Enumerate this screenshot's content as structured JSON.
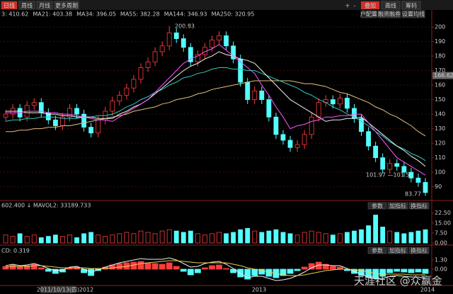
{
  "toolbar": {
    "left": [
      "日线",
      "周线",
      "月线",
      "更多周期"
    ],
    "right": [
      "+",
      "-",
      "叠加",
      "画线",
      "筹码"
    ],
    "sub": [
      "户配置",
      "融资融券",
      "设置均线"
    ]
  },
  "legend": [
    {
      "text": "3: 410.62",
      "color": "#dddddd"
    },
    {
      "text": "MA21: 403.38",
      "color": "#ff55ff"
    },
    {
      "text": "MA34: 396.05",
      "color": "#33dd33"
    },
    {
      "text": "MA55: 382.28",
      "color": "#eeeeee"
    },
    {
      "text": "MA144: 346.93",
      "color": "#2fc8c0"
    },
    {
      "text": "MA250: 320.95",
      "color": "#e0c27a"
    }
  ],
  "annotations": [
    "200.83",
    "83.77",
    "101.97 —101.54"
  ],
  "x_labels": [
    "2011/10/13(四)",
    "2012",
    "2013",
    "2014"
  ],
  "panel_buttons": [
    "参数",
    "加指标",
    "换指标"
  ],
  "watermark": "天涯社区 @众赢金",
  "chart_data": [
    {
      "type": "candlestick",
      "up_color": "#ff3c3c",
      "down_color": "#54ffff",
      "grid": true,
      "ylim": [
        82,
        203
      ],
      "yticks": [
        200,
        190,
        180,
        170,
        160,
        150,
        140,
        130,
        120,
        110,
        100,
        90
      ],
      "cursor_label": 166.62,
      "open": [
        138,
        140,
        144,
        138,
        146,
        148,
        141,
        136,
        132,
        138,
        144,
        140,
        131,
        127,
        136,
        142,
        149,
        153,
        158,
        164,
        172,
        176,
        183,
        187,
        196,
        192,
        186,
        176,
        181,
        186,
        191,
        194,
        187,
        178,
        162,
        150,
        156,
        150,
        138,
        126,
        122,
        117,
        119,
        126,
        138,
        148,
        150,
        147,
        151,
        144,
        137,
        128,
        118,
        110,
        102,
        106,
        104,
        100,
        96,
        93
      ],
      "high": [
        143,
        147,
        147,
        149,
        151,
        151,
        144,
        139,
        141,
        147,
        147,
        143,
        134,
        139,
        145,
        152,
        156,
        161,
        167,
        175,
        179,
        186,
        190,
        200.83,
        199,
        195,
        189,
        184,
        189,
        194,
        197,
        197,
        190,
        181,
        165,
        159,
        159,
        153,
        141,
        129,
        125,
        122,
        129,
        141,
        151,
        153,
        153,
        154,
        154,
        147,
        140,
        131,
        121,
        113,
        109,
        109,
        107,
        103,
        99,
        96
      ],
      "low": [
        135,
        137,
        135,
        135,
        143,
        138,
        133,
        129,
        129,
        135,
        137,
        128,
        124,
        124,
        133,
        139,
        146,
        150,
        155,
        161,
        169,
        173,
        180,
        184,
        189,
        183,
        173,
        173,
        178,
        183,
        188,
        184,
        175,
        159,
        147,
        147,
        147,
        135,
        123,
        119,
        114,
        114,
        116,
        123,
        135,
        145,
        144,
        144,
        141,
        134,
        125,
        115,
        107,
        99,
        99,
        101,
        97,
        93,
        90,
        83.77
      ],
      "close": [
        140,
        144,
        138,
        146,
        148,
        141,
        136,
        132,
        138,
        144,
        140,
        131,
        127,
        136,
        142,
        149,
        153,
        158,
        164,
        172,
        176,
        183,
        187,
        196,
        192,
        186,
        176,
        181,
        186,
        191,
        194,
        187,
        178,
        162,
        150,
        156,
        150,
        138,
        126,
        122,
        117,
        119,
        126,
        138,
        148,
        150,
        147,
        151,
        144,
        137,
        128,
        118,
        110,
        102,
        106,
        104,
        100,
        96,
        93,
        86
      ],
      "series": [
        {
          "color": "#e0c27a",
          "values": [
            128,
            128,
            129,
            129,
            130,
            130,
            131,
            131,
            132,
            132,
            133,
            134,
            135,
            136,
            137,
            138,
            139,
            140,
            142,
            143,
            144,
            145,
            147,
            148,
            150,
            151,
            152,
            154,
            155,
            157,
            158,
            159,
            160,
            161,
            162,
            163,
            163,
            163,
            163,
            163,
            163,
            162,
            161,
            161,
            160,
            159,
            157,
            155,
            154,
            152,
            150,
            148,
            145,
            143,
            140,
            138,
            135,
            132,
            128,
            125
          ]
        },
        {
          "color": "#2fc8c0",
          "values": [
            135,
            136,
            136,
            137,
            137,
            138,
            138,
            138,
            137,
            137,
            137,
            138,
            138,
            139,
            139,
            140,
            142,
            145,
            147,
            150,
            152,
            155,
            157,
            160,
            162,
            165,
            166,
            168,
            169,
            171,
            172,
            172,
            171,
            171,
            170,
            170,
            168,
            166,
            164,
            162,
            160,
            158,
            155,
            153,
            150,
            148,
            145,
            143,
            140,
            138,
            135,
            132,
            128,
            125,
            121,
            118,
            116,
            113,
            111,
            108
          ]
        },
        {
          "color": "#eeeeee",
          "values": [
            142,
            142,
            142,
            141,
            141,
            141,
            140,
            140,
            139,
            139,
            138,
            138,
            138,
            137,
            137,
            137,
            140,
            142,
            145,
            147,
            150,
            154,
            158,
            162,
            166,
            170,
            173,
            175,
            178,
            180,
            183,
            181,
            180,
            178,
            177,
            175,
            170,
            165,
            160,
            155,
            150,
            147,
            144,
            141,
            138,
            135,
            136,
            136,
            137,
            137,
            138,
            134,
            130,
            126,
            122,
            118,
            115,
            111,
            108,
            104
          ]
        },
        {
          "color": "#ff55ff",
          "values": [
            141,
            141,
            141,
            142,
            142,
            142,
            141,
            141,
            140,
            140,
            139,
            138,
            137,
            136,
            136,
            135,
            138,
            141,
            144,
            147,
            150,
            155,
            160,
            165,
            170,
            175,
            178,
            180,
            183,
            185,
            188,
            184,
            180,
            176,
            172,
            168,
            160,
            153,
            145,
            138,
            130,
            132,
            133,
            135,
            136,
            138,
            138,
            139,
            139,
            140,
            140,
            134,
            128,
            122,
            116,
            110,
            107,
            104,
            101,
            98
          ]
        }
      ]
    },
    {
      "type": "bar",
      "title": "602.400 ↓ MAVOL2: 33189.733",
      "ylim": [
        0,
        25
      ],
      "yticks": [
        {
          "value": 22.5,
          "label": "22.50"
        },
        {
          "value": 15,
          "label": "15.00"
        },
        {
          "value": 7.5,
          "label": "7.50"
        },
        {
          "value": 0,
          "label": "0.00"
        }
      ],
      "values": [
        6,
        5,
        7,
        5,
        6,
        4,
        5,
        6,
        5,
        6,
        4,
        7,
        8,
        6,
        5,
        6,
        7,
        8,
        7,
        9,
        8,
        7,
        9,
        10,
        9,
        8,
        9,
        7,
        6,
        7,
        8,
        7,
        8,
        10,
        11,
        9,
        8,
        9,
        10,
        8,
        7,
        6,
        8,
        9,
        8,
        7,
        6,
        7,
        8,
        9,
        10,
        13,
        21,
        12,
        9,
        8,
        7,
        8,
        9,
        10
      ]
    },
    {
      "type": "bar",
      "title": "CD: 0.319",
      "ylim": [
        -2,
        2
      ],
      "yticks": [
        {
          "value": 1.3,
          "label": "1.30"
        },
        {
          "value": 0,
          "label": "0.00"
        }
      ],
      "values": [
        0.4,
        0.6,
        0.3,
        0.5,
        0.7,
        0.2,
        -0.3,
        -0.6,
        -0.4,
        0.2,
        0.3,
        -0.5,
        -0.9,
        -0.2,
        0.3,
        0.6,
        0.8,
        0.9,
        1.0,
        1.1,
        0.9,
        0.8,
        0.7,
        0.9,
        0.4,
        -0.3,
        -0.8,
        -0.5,
        0.2,
        0.5,
        0.6,
        0.1,
        -0.5,
        -1.1,
        -1.4,
        -0.9,
        -0.7,
        -1.0,
        -1.2,
        -0.9,
        -0.6,
        -0.2,
        0.3,
        0.8,
        1.0,
        0.7,
        0.4,
        0.3,
        -0.2,
        -0.6,
        -0.9,
        -1.2,
        -1.3,
        -1.0,
        -0.5,
        -0.3,
        -0.4,
        -0.5,
        -0.4,
        -0.6
      ],
      "series": [
        {
          "color": "#f0f0f0",
          "values": [
            0.5,
            0.7,
            0.5,
            0.6,
            0.8,
            0.5,
            0.1,
            -0.2,
            -0.1,
            0.3,
            0.4,
            0.0,
            -0.4,
            -0.1,
            0.3,
            0.6,
            0.9,
            1.1,
            1.3,
            1.5,
            1.4,
            1.4,
            1.4,
            1.6,
            1.3,
            0.8,
            0.3,
            0.4,
            0.8,
            1.0,
            1.1,
            0.7,
            0.1,
            -0.6,
            -1.2,
            -1.0,
            -1.0,
            -1.3,
            -1.6,
            -1.5,
            -1.3,
            -0.9,
            -0.4,
            0.2,
            0.6,
            0.6,
            0.5,
            0.5,
            0.1,
            -0.3,
            -0.7,
            -1.1,
            -1.4,
            -1.3,
            -1.0,
            -0.9,
            -1.0,
            -1.1,
            -1.1,
            -1.3
          ]
        },
        {
          "color": "#e8d24a",
          "values": [
            0.3,
            0.4,
            0.4,
            0.4,
            0.5,
            0.5,
            0.4,
            0.3,
            0.2,
            0.2,
            0.2,
            0.2,
            0.1,
            0.1,
            0.1,
            0.2,
            0.3,
            0.4,
            0.6,
            0.8,
            0.9,
            1.0,
            1.1,
            1.2,
            1.2,
            1.1,
            1.0,
            0.9,
            0.9,
            0.9,
            0.9,
            0.9,
            0.7,
            0.5,
            0.2,
            0.0,
            -0.2,
            -0.4,
            -0.6,
            -0.8,
            -0.9,
            -0.9,
            -0.8,
            -0.6,
            -0.4,
            -0.2,
            -0.1,
            0.0,
            0.0,
            -0.1,
            -0.2,
            -0.4,
            -0.6,
            -0.7,
            -0.7,
            -0.7,
            -0.7,
            -0.8,
            -0.8,
            -0.8
          ]
        }
      ]
    }
  ]
}
